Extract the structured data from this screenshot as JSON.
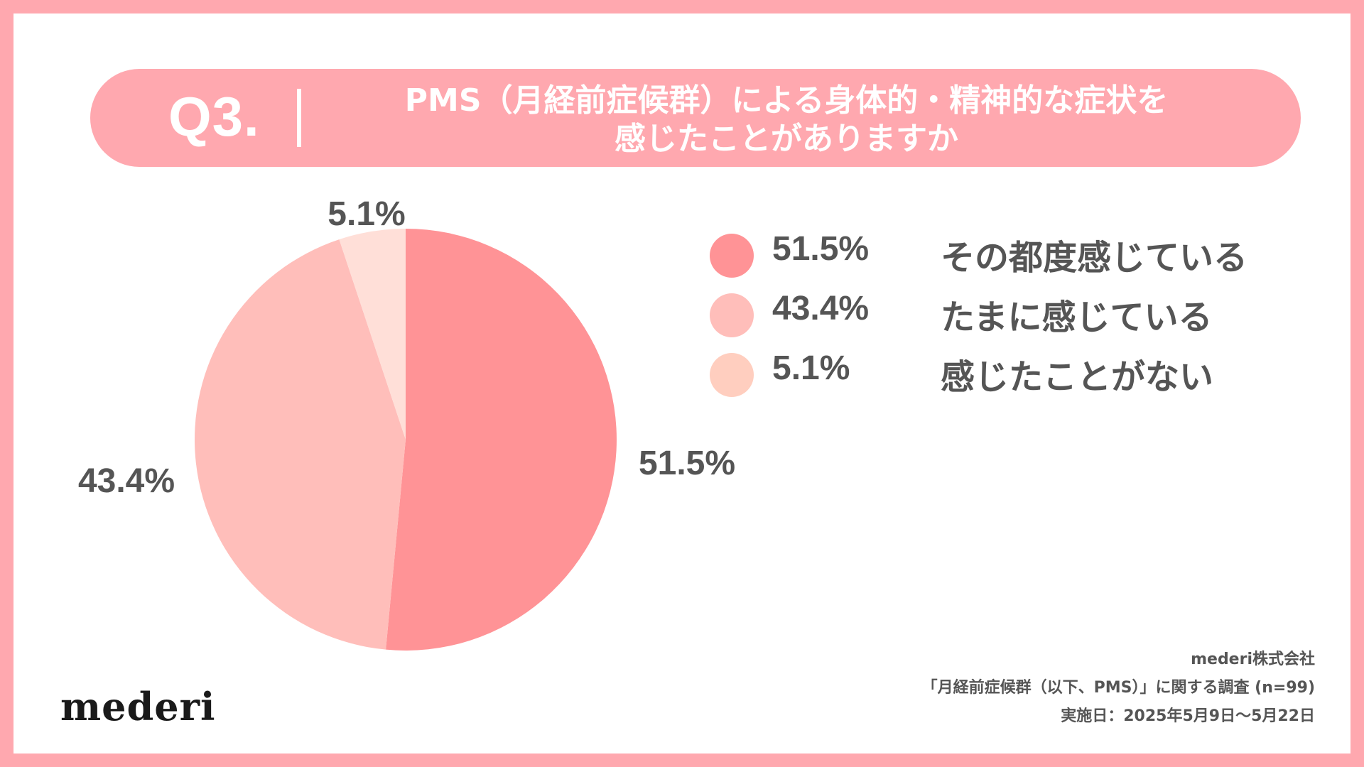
{
  "header": {
    "question_number": "Q3.",
    "question_line1": "PMS（月経前症候群）による身体的・精神的な症状を",
    "question_line2": "感じたことがありますか"
  },
  "chart_data": {
    "type": "pie",
    "title": "",
    "slices": [
      {
        "label": "その都度感じている",
        "value": 51.5,
        "display": "51.5%",
        "color": "#ff9396"
      },
      {
        "label": "たまに感じている",
        "value": 43.4,
        "display": "43.4%",
        "color": "#ffbeba"
      },
      {
        "label": "感じたことがない",
        "value": 5.1,
        "display": "5.1%",
        "color": "#ffdfd8"
      }
    ],
    "legend_placement": "right"
  },
  "legend_dot_colors": [
    "#ff9396",
    "#ffbeba",
    "#ffcebf"
  ],
  "logo_text": "mederi",
  "footer": {
    "company": "mederi株式会社",
    "survey": "「月経前症候群（以下、PMS）」に関する調査 (n=99)",
    "date": "実施日：2025年5月9日〜5月22日"
  }
}
